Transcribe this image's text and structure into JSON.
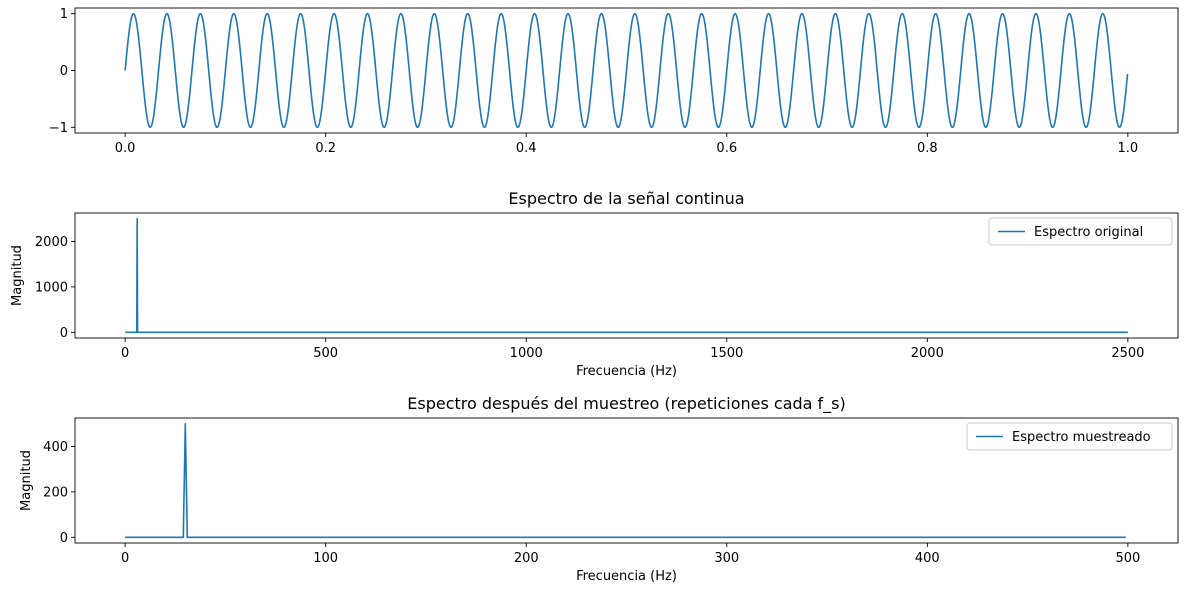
{
  "colors": {
    "line": "#1f77b4",
    "axes": "#000000",
    "legend_border": "#cccccc"
  },
  "chart_data": [
    {
      "type": "line",
      "title": "",
      "xlabel": "",
      "ylabel": "",
      "xlim": [
        -0.05,
        1.05
      ],
      "ylim": [
        -1.1,
        1.1
      ],
      "xticks": [
        0.0,
        0.2,
        0.4,
        0.6,
        0.8,
        1.0
      ],
      "xtick_labels": [
        "0.0",
        "0.2",
        "0.4",
        "0.6",
        "0.8",
        "1.0"
      ],
      "yticks": [
        -1,
        0,
        1
      ],
      "ytick_labels": [
        "−1",
        "0",
        "1"
      ],
      "series": [
        {
          "function": "sine",
          "amplitude": 1,
          "frequency": 30,
          "x_range": [
            0,
            1
          ]
        }
      ],
      "legend": null
    },
    {
      "type": "line",
      "title": "Espectro de la señal continua",
      "xlabel": "Frecuencia (Hz)",
      "ylabel": "Magnitud",
      "xlim": [
        -125,
        2625
      ],
      "ylim": [
        -125,
        2625
      ],
      "xticks": [
        0,
        500,
        1000,
        1500,
        2000,
        2500
      ],
      "xtick_labels": [
        "0",
        "500",
        "1000",
        "1500",
        "2000",
        "2500"
      ],
      "yticks": [
        0,
        1000,
        2000
      ],
      "ytick_labels": [
        "0",
        "1000",
        "2000"
      ],
      "series": [
        {
          "name": "Espectro original",
          "x": [
            0,
            29,
            30,
            31,
            2500
          ],
          "y": [
            0,
            0,
            2500,
            0,
            0
          ]
        }
      ],
      "legend": "top-right"
    },
    {
      "type": "line",
      "title": "Espectro después del muestreo (repeticiones cada f_s)",
      "xlabel": "Frecuencia (Hz)",
      "ylabel": "Magnitud",
      "xlim": [
        -25,
        525
      ],
      "ylim": [
        -25,
        525
      ],
      "xticks": [
        0,
        100,
        200,
        300,
        400,
        500
      ],
      "xtick_labels": [
        "0",
        "100",
        "200",
        "300",
        "400",
        "500"
      ],
      "yticks": [
        0,
        200,
        400
      ],
      "ytick_labels": [
        "0",
        "200",
        "400"
      ],
      "series": [
        {
          "name": "Espectro muestreado",
          "x": [
            0,
            29,
            30,
            31,
            499
          ],
          "y": [
            0,
            0,
            500,
            0,
            0
          ]
        }
      ],
      "legend": "top-right"
    }
  ]
}
